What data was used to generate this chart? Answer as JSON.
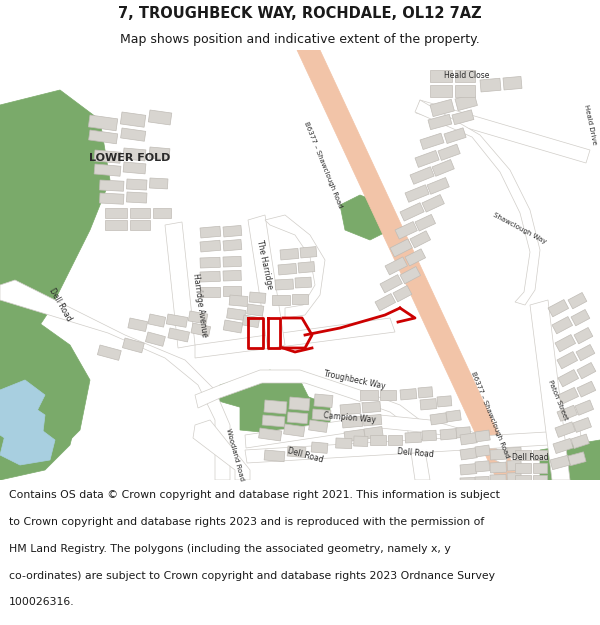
{
  "title": "7, TROUGHBECK WAY, ROCHDALE, OL12 7AZ",
  "subtitle": "Map shows position and indicative extent of the property.",
  "footer_lines": [
    "Contains OS data © Crown copyright and database right 2021. This information is subject",
    "to Crown copyright and database rights 2023 and is reproduced with the permission of",
    "HM Land Registry. The polygons (including the associated geometry, namely x, y",
    "co-ordinates) are subject to Crown copyright and database rights 2023 Ordnance Survey",
    "100026316."
  ],
  "title_fontsize": 10.5,
  "subtitle_fontsize": 9,
  "footer_fontsize": 7.8,
  "bg_color": "#ffffff",
  "map_bg": "#f0eeeb",
  "road_color": "#f2c4a8",
  "green_color": "#7aaa6a",
  "building_color": "#d8d5d0",
  "building_edge": "#c0bcb6",
  "water_color": "#a8cfe0",
  "red_color": "#cc0000",
  "white_road": "#ffffff",
  "white_road_edge": "#d0cdc8"
}
